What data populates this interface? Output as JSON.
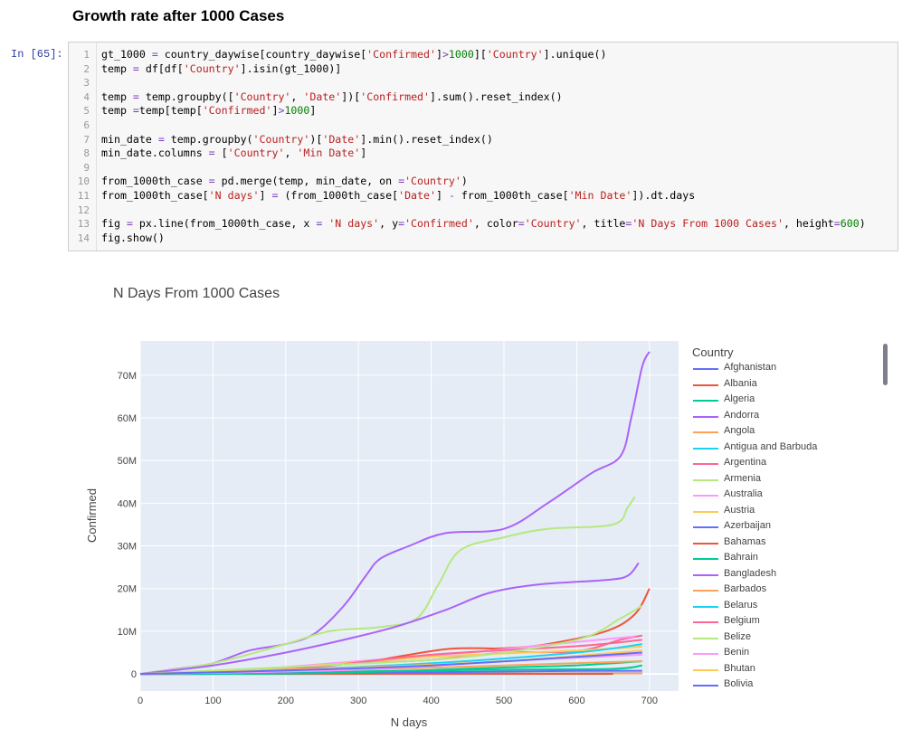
{
  "heading": "Growth rate after 1000 Cases",
  "cell": {
    "prompt": "In [65]:",
    "line_numbers": [
      "1",
      "2",
      "3",
      "4",
      "5",
      "6",
      "7",
      "8",
      "9",
      "10",
      "11",
      "12",
      "13",
      "14"
    ],
    "lines": [
      "gt_1000 = country_daywise[country_daywise['Confirmed']>1000]['Country'].unique()",
      "temp = df[df['Country'].isin(gt_1000)]",
      "",
      "temp = temp.groupby(['Country', 'Date'])['Confirmed'].sum().reset_index()",
      "temp =temp[temp['Confirmed']>1000]",
      "",
      "min_date = temp.groupby('Country')['Date'].min().reset_index()",
      "min_date.columns = ['Country', 'Min Date']",
      "",
      "from_1000th_case = pd.merge(temp, min_date, on ='Country')",
      "from_1000th_case['N days'] = (from_1000th_case['Date'] - from_1000th_case['Min Date']).dt.days",
      "",
      "fig = px.line(from_1000th_case, x = 'N days', y='Confirmed', color='Country', title='N Days From 1000 Cases', height=600)",
      "fig.show()"
    ]
  },
  "chart_data": {
    "type": "line",
    "title": "N Days From 1000 Cases",
    "xlabel": "N days",
    "ylabel": "Confirmed",
    "xlim": [
      0,
      740
    ],
    "ylim": [
      -4000000,
      78000000
    ],
    "x_ticks": [
      0,
      100,
      200,
      300,
      400,
      500,
      600,
      700
    ],
    "x_tick_labels": [
      "0",
      "100",
      "200",
      "300",
      "400",
      "500",
      "600",
      "700"
    ],
    "y_ticks": [
      0,
      10000000,
      20000000,
      30000000,
      40000000,
      50000000,
      60000000,
      70000000
    ],
    "y_tick_labels": [
      "0",
      "10M",
      "20M",
      "30M",
      "40M",
      "50M",
      "60M",
      "70M"
    ],
    "grid": true,
    "legend_title": "Country",
    "legend_placement": "right",
    "series": [
      {
        "name": "Afghanistan",
        "color": "#636efa",
        "points": [
          [
            0,
            0
          ],
          [
            200,
            30000
          ],
          [
            400,
            55000
          ],
          [
            600,
            150000
          ],
          [
            690,
            160000
          ]
        ]
      },
      {
        "name": "Albania",
        "color": "#ef553b",
        "points": [
          [
            0,
            0
          ],
          [
            200,
            1500000
          ],
          [
            300,
            2600000
          ],
          [
            420,
            5800000
          ],
          [
            500,
            6000000
          ],
          [
            560,
            7000000
          ],
          [
            640,
            10000000
          ],
          [
            680,
            14000000
          ],
          [
            700,
            20000000
          ]
        ]
      },
      {
        "name": "Algeria",
        "color": "#00cc96",
        "points": [
          [
            0,
            0
          ],
          [
            200,
            300000
          ],
          [
            300,
            600000
          ],
          [
            500,
            1000000
          ],
          [
            650,
            1200000
          ],
          [
            690,
            2000000
          ]
        ]
      },
      {
        "name": "Andorra",
        "color": "#ab63fa",
        "points": [
          [
            0,
            0
          ],
          [
            50,
            1200000
          ],
          [
            100,
            2500000
          ],
          [
            150,
            5500000
          ],
          [
            200,
            7000000
          ],
          [
            240,
            9500000
          ],
          [
            280,
            16000000
          ],
          [
            310,
            23000000
          ],
          [
            330,
            27000000
          ],
          [
            370,
            30000000
          ],
          [
            420,
            33000000
          ],
          [
            500,
            34000000
          ],
          [
            560,
            40000000
          ],
          [
            620,
            47000000
          ],
          [
            660,
            51000000
          ],
          [
            675,
            60000000
          ],
          [
            690,
            72000000
          ],
          [
            700,
            75500000
          ]
        ]
      },
      {
        "name": "Angola",
        "color": "#ffa15a",
        "points": [
          [
            0,
            0
          ],
          [
            300,
            60000
          ],
          [
            500,
            100000
          ],
          [
            690,
            110000
          ]
        ]
      },
      {
        "name": "Antigua and Barbuda",
        "color": "#19d3f3",
        "points": [
          [
            0,
            0
          ],
          [
            400,
            2000
          ],
          [
            650,
            8000
          ]
        ]
      },
      {
        "name": "Argentina",
        "color": "#ff6692",
        "points": [
          [
            0,
            0
          ],
          [
            200,
            1300000
          ],
          [
            300,
            2500000
          ],
          [
            400,
            3300000
          ],
          [
            500,
            5000000
          ],
          [
            600,
            5300000
          ],
          [
            660,
            8000000
          ],
          [
            690,
            9000000
          ]
        ]
      },
      {
        "name": "Armenia",
        "color": "#b6e880",
        "points": [
          [
            0,
            0
          ],
          [
            100,
            2500000
          ],
          [
            200,
            7000000
          ],
          [
            260,
            10000000
          ],
          [
            330,
            11000000
          ],
          [
            380,
            13000000
          ],
          [
            410,
            21000000
          ],
          [
            440,
            29000000
          ],
          [
            500,
            32000000
          ],
          [
            560,
            34000000
          ],
          [
            650,
            35000000
          ],
          [
            670,
            39000000
          ],
          [
            680,
            41500000
          ]
        ]
      },
      {
        "name": "Australia",
        "color": "#ff97ff",
        "points": [
          [
            0,
            0
          ],
          [
            150,
            1000000
          ],
          [
            300,
            3000000
          ],
          [
            450,
            5000000
          ],
          [
            600,
            7500000
          ],
          [
            680,
            8800000
          ]
        ]
      },
      {
        "name": "Austria",
        "color": "#fecb52",
        "points": [
          [
            0,
            0
          ],
          [
            200,
            1500000
          ],
          [
            400,
            4000000
          ],
          [
            600,
            5500000
          ],
          [
            690,
            6400000
          ]
        ]
      },
      {
        "name": "Azerbaijan",
        "color": "#636efa",
        "points": [
          [
            0,
            0
          ],
          [
            200,
            150000
          ],
          [
            400,
            400000
          ],
          [
            600,
            700000
          ],
          [
            690,
            750000
          ]
        ]
      },
      {
        "name": "Bahamas",
        "color": "#ef553b",
        "points": [
          [
            0,
            0
          ],
          [
            400,
            20000
          ],
          [
            650,
            35000
          ]
        ]
      },
      {
        "name": "Bahrain",
        "color": "#00cc96",
        "points": [
          [
            0,
            0
          ],
          [
            250,
            200000
          ],
          [
            500,
            1500000
          ],
          [
            600,
            2000000
          ],
          [
            690,
            3000000
          ]
        ]
      },
      {
        "name": "Bangladesh",
        "color": "#ab63fa",
        "points": [
          [
            0,
            0
          ],
          [
            100,
            2000000
          ],
          [
            200,
            5000000
          ],
          [
            280,
            8000000
          ],
          [
            350,
            11000000
          ],
          [
            420,
            15000000
          ],
          [
            480,
            19000000
          ],
          [
            550,
            21000000
          ],
          [
            640,
            22000000
          ],
          [
            670,
            23000000
          ],
          [
            685,
            26000000
          ]
        ]
      },
      {
        "name": "Barbados",
        "color": "#ffa15a",
        "points": [
          [
            0,
            0
          ],
          [
            300,
            1000000
          ],
          [
            500,
            2000000
          ],
          [
            690,
            3000000
          ]
        ]
      },
      {
        "name": "Belarus",
        "color": "#19d3f3",
        "points": [
          [
            0,
            0
          ],
          [
            200,
            1000000
          ],
          [
            400,
            2500000
          ],
          [
            600,
            5000000
          ],
          [
            690,
            7000000
          ]
        ]
      },
      {
        "name": "Belgium",
        "color": "#ff6692",
        "points": [
          [
            0,
            0
          ],
          [
            200,
            1000000
          ],
          [
            400,
            4500000
          ],
          [
            600,
            6500000
          ],
          [
            690,
            8000000
          ]
        ]
      },
      {
        "name": "Belize",
        "color": "#b6e880",
        "points": [
          [
            0,
            0
          ],
          [
            250,
            2000000
          ],
          [
            450,
            4000000
          ],
          [
            600,
            8000000
          ],
          [
            660,
            13000000
          ],
          [
            690,
            16000000
          ]
        ]
      },
      {
        "name": "Benin",
        "color": "#ff97ff",
        "points": [
          [
            0,
            0
          ],
          [
            300,
            1000000
          ],
          [
            500,
            3000000
          ],
          [
            690,
            4500000
          ]
        ]
      },
      {
        "name": "Bhutan",
        "color": "#fecb52",
        "points": [
          [
            0,
            0
          ],
          [
            300,
            1500000
          ],
          [
            500,
            3000000
          ],
          [
            690,
            5500000
          ]
        ]
      },
      {
        "name": "Bolivia",
        "color": "#636efa",
        "points": [
          [
            0,
            0
          ],
          [
            200,
            800000
          ],
          [
            400,
            2000000
          ],
          [
            600,
            4000000
          ],
          [
            690,
            5000000
          ]
        ]
      }
    ]
  }
}
